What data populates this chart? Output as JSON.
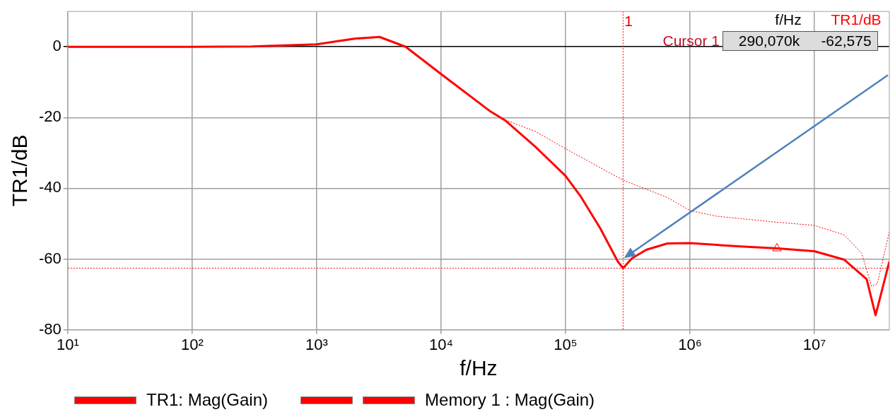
{
  "chart_data": {
    "type": "line",
    "xlabel": "f/Hz",
    "ylabel": "TR1/dB",
    "log": "x",
    "grid": true,
    "legend": "bottom",
    "marker": "none",
    "xlim": [
      10,
      40000000
    ],
    "xticks": [
      {
        "value": 10,
        "label": "10¹"
      },
      {
        "value": 100,
        "label": "10²"
      },
      {
        "value": 1000,
        "label": "10³"
      },
      {
        "value": 10000,
        "label": "10⁴"
      },
      {
        "value": 100000,
        "label": "10⁵"
      },
      {
        "value": 1000000,
        "label": "10⁶"
      },
      {
        "value": 10000000,
        "label": "10⁷"
      }
    ],
    "ylim": [
      -80,
      10
    ],
    "yticks": [
      -80,
      -60,
      -40,
      -20,
      0
    ],
    "series": [
      {
        "name": "TR1: Mag(Gain)",
        "color": "#ff0000",
        "line_style": "solid",
        "x": [
          10,
          100,
          300,
          1000,
          2000,
          3200,
          5200,
          10000,
          25000,
          33000,
          57000,
          100000,
          133000,
          190000,
          263000,
          290070,
          342000,
          445000,
          658000,
          1000000,
          2430000,
          5070000,
          10000000,
          17400000,
          26300000,
          31000000,
          40000000
        ],
        "values": [
          0,
          0,
          0.1,
          0.7,
          2.3,
          2.8,
          0,
          -7.7,
          -18.3,
          -20.9,
          -28.2,
          -36.5,
          -42.4,
          -51.3,
          -60.7,
          -62.6,
          -59.8,
          -57.4,
          -55.6,
          -55.5,
          -56.4,
          -57,
          -57.8,
          -60.2,
          -65.7,
          -75.9,
          -60.7
        ]
      },
      {
        "name": "Memory 1 : Mag(Gain)",
        "color": "#ff0000",
        "line_style": "dotted",
        "x": [
          10,
          100,
          300,
          1000,
          2000,
          3200,
          5200,
          10000,
          25000,
          33000,
          57000,
          100000,
          290070,
          658000,
          1000000,
          1640000,
          4680000,
          10000000,
          17400000,
          24000000,
          28800000,
          32000000,
          40000000
        ],
        "values": [
          0,
          0,
          0.1,
          0.6,
          2.1,
          2.6,
          0,
          -7.6,
          -18.3,
          -20.7,
          -23.9,
          -28.8,
          -37.7,
          -42.6,
          -46.3,
          -47.9,
          -49.5,
          -50.5,
          -53.2,
          -58.4,
          -67.7,
          -67,
          -52.3
        ]
      },
      {
        "type": "scatter",
        "marker": "triangle",
        "color": "#ff0000",
        "x": [
          5000000
        ],
        "values": [
          -57
        ]
      }
    ],
    "ref_lines": [
      {
        "axis": "x",
        "value": 290070,
        "color": "#ff0000",
        "line_style": "dotted"
      },
      {
        "axis": "y",
        "value": -62.575,
        "color": "#ff0000",
        "line_style": "dotted"
      }
    ],
    "annotations": [
      "f/Hz",
      "TR1/dB",
      "Cursor 1",
      "290,070k",
      "-62,575",
      "1"
    ]
  }
}
